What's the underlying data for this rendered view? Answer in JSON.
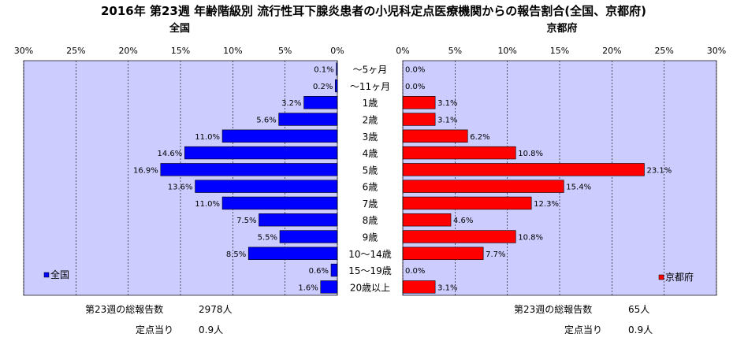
{
  "chart_data": {
    "type": "bar",
    "title": "2016年 第23週 年齢階級別 流行性耳下腺炎患者の小児科定点医療機関からの報告割合(全国、京都府)",
    "categories": [
      "～5ヶ月",
      "～11ヶ月",
      "1歳",
      "2歳",
      "3歳",
      "4歳",
      "5歳",
      "6歳",
      "7歳",
      "8歳",
      "9歳",
      "10～14歳",
      "15～19歳",
      "20歳以上"
    ],
    "left": {
      "subtitle": "全国",
      "ticks": [
        "30%",
        "25%",
        "20%",
        "15%",
        "10%",
        "5%",
        "0%"
      ],
      "xlim": [
        0,
        30
      ],
      "series": [
        {
          "name": "全国",
          "color": "#0000ff",
          "values": [
            0.1,
            0.2,
            3.2,
            5.6,
            11.0,
            14.6,
            16.9,
            13.6,
            11.0,
            7.5,
            5.5,
            8.5,
            0.6,
            1.6
          ],
          "labels": [
            "0.1%",
            "0.2%",
            "3.2%",
            "5.6%",
            "11.0%",
            "14.6%",
            "16.9%",
            "13.6%",
            "11.0%",
            "7.5%",
            "5.5%",
            "8.5%",
            "0.6%",
            "1.6%"
          ]
        }
      ],
      "total_label": "第23週の総報告数",
      "total_value": "2978人",
      "per_label": "定点当り",
      "per_value": "0.9人"
    },
    "right": {
      "subtitle": "京都府",
      "ticks": [
        "0%",
        "5%",
        "10%",
        "15%",
        "20%",
        "25%",
        "30%"
      ],
      "xlim": [
        0,
        30
      ],
      "series": [
        {
          "name": "京都府",
          "color": "#ff0000",
          "values": [
            0.0,
            0.0,
            3.1,
            3.1,
            6.2,
            10.8,
            23.1,
            15.4,
            12.3,
            4.6,
            10.8,
            7.7,
            0.0,
            3.1
          ],
          "labels": [
            "0.0%",
            "0.0%",
            "3.1%",
            "3.1%",
            "6.2%",
            "10.8%",
            "23.1%",
            "15.4%",
            "12.3%",
            "4.6%",
            "10.8%",
            "7.7%",
            "0.0%",
            "3.1%"
          ]
        }
      ],
      "total_label": "第23週の総報告数",
      "total_value": "65人",
      "per_label": "定点当り",
      "per_value": "0.9人"
    },
    "plot_bg": "#ccccff",
    "grid": true,
    "legend_position": "bottom-left / bottom-right"
  }
}
